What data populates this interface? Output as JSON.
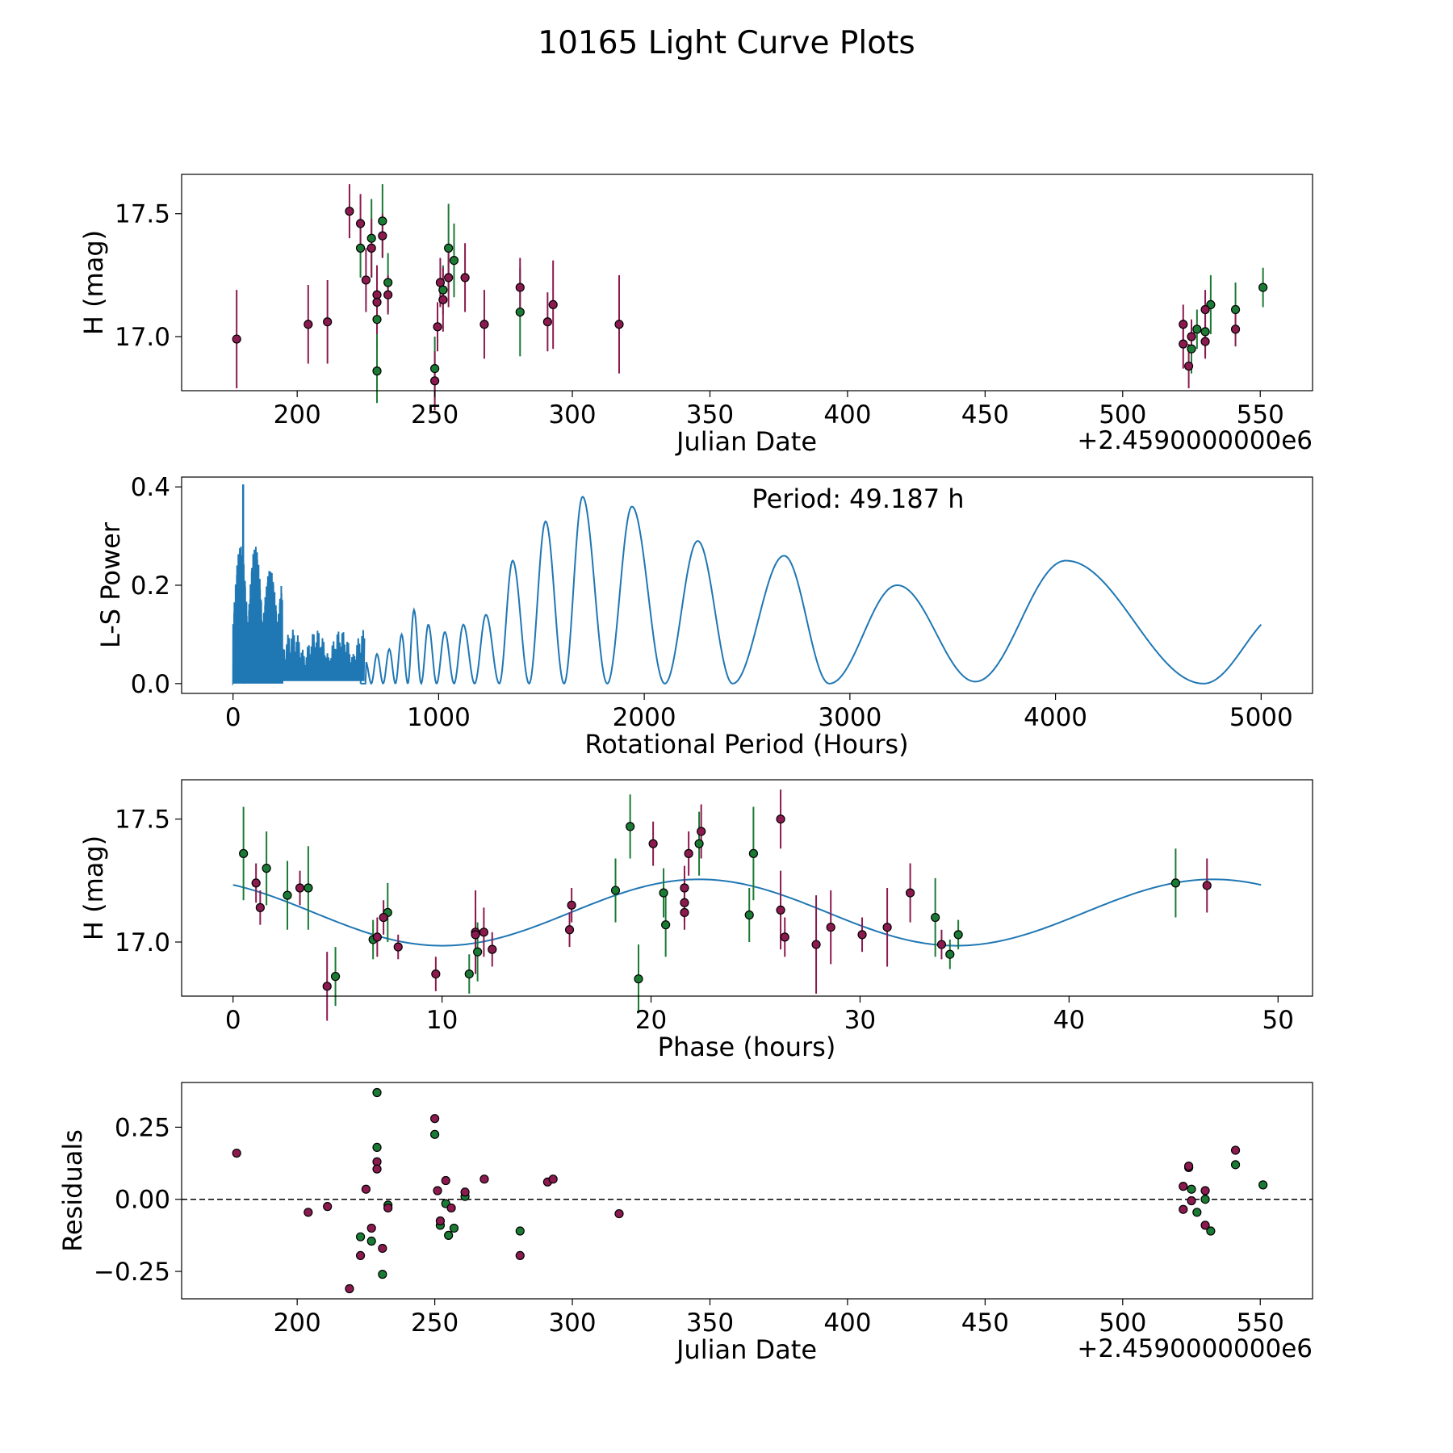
{
  "figure_title": "10165 Light Curve Plots",
  "colors": {
    "green_points": "#1b7a34",
    "purple_points": "#8b1a4f",
    "curve": "#1f77b4",
    "axes": "#000000"
  },
  "chart_data": [
    {
      "id": "lc",
      "type": "scatter",
      "xlabel": "Julian Date",
      "ylabel": "H (mag)",
      "x_offset_label": "+2.4590000000e6",
      "xlim": [
        158,
        569
      ],
      "ylim": [
        16.78,
        17.66
      ],
      "xticks": [
        200,
        250,
        300,
        350,
        400,
        450,
        500,
        550
      ],
      "xtick_labels": [
        "200",
        "250",
        "300",
        "350",
        "400",
        "450",
        "500",
        "550"
      ],
      "yticks": [
        17.0,
        17.5
      ],
      "ytick_labels": [
        "17.0",
        "17.5"
      ],
      "series": [
        {
          "name": "green",
          "color": "#1b7a34",
          "points": [
            {
              "x": 223.0,
              "y": 17.36,
              "err": 0.12
            },
            {
              "x": 227.0,
              "y": 17.4,
              "err": 0.16
            },
            {
              "x": 229.0,
              "y": 17.07,
              "err": 0.12
            },
            {
              "x": 229.0,
              "y": 16.86,
              "err": 0.13
            },
            {
              "x": 231.0,
              "y": 17.47,
              "err": 0.15
            },
            {
              "x": 233.0,
              "y": 17.22,
              "err": 0.12
            },
            {
              "x": 250.0,
              "y": 16.87,
              "err": 0.13
            },
            {
              "x": 253.0,
              "y": 17.19,
              "err": 0.1
            },
            {
              "x": 255.0,
              "y": 17.36,
              "err": 0.18
            },
            {
              "x": 257.0,
              "y": 17.31,
              "err": 0.15
            },
            {
              "x": 281.0,
              "y": 17.1,
              "err": 0.18
            },
            {
              "x": 525.0,
              "y": 16.95,
              "err": 0.1
            },
            {
              "x": 527.0,
              "y": 17.03,
              "err": 0.08
            },
            {
              "x": 530.0,
              "y": 17.02,
              "err": 0.1
            },
            {
              "x": 532.0,
              "y": 17.13,
              "err": 0.12
            },
            {
              "x": 541.0,
              "y": 17.11,
              "err": 0.11
            },
            {
              "x": 551.0,
              "y": 17.2,
              "err": 0.08
            }
          ]
        },
        {
          "name": "purple",
          "color": "#8b1a4f",
          "points": [
            {
              "x": 178.0,
              "y": 16.99,
              "err": 0.2
            },
            {
              "x": 204.0,
              "y": 17.05,
              "err": 0.16
            },
            {
              "x": 211.0,
              "y": 17.06,
              "err": 0.17
            },
            {
              "x": 219.0,
              "y": 17.51,
              "err": 0.11
            },
            {
              "x": 223.0,
              "y": 17.46,
              "err": 0.12
            },
            {
              "x": 225.0,
              "y": 17.23,
              "err": 0.13
            },
            {
              "x": 227.0,
              "y": 17.36,
              "err": 0.12
            },
            {
              "x": 229.0,
              "y": 17.17,
              "err": 0.12
            },
            {
              "x": 229.0,
              "y": 17.14,
              "err": 0.13
            },
            {
              "x": 231.0,
              "y": 17.41,
              "err": 0.09
            },
            {
              "x": 233.0,
              "y": 17.17,
              "err": 0.08
            },
            {
              "x": 250.0,
              "y": 16.82,
              "err": 0.12
            },
            {
              "x": 251.0,
              "y": 17.04,
              "err": 0.1
            },
            {
              "x": 252.0,
              "y": 17.22,
              "err": 0.1
            },
            {
              "x": 253.0,
              "y": 17.15,
              "err": 0.13
            },
            {
              "x": 255.0,
              "y": 17.24,
              "err": 0.12
            },
            {
              "x": 261.0,
              "y": 17.24,
              "err": 0.14
            },
            {
              "x": 268.0,
              "y": 17.05,
              "err": 0.14
            },
            {
              "x": 281.0,
              "y": 17.2,
              "err": 0.12
            },
            {
              "x": 291.0,
              "y": 17.06,
              "err": 0.12
            },
            {
              "x": 293.0,
              "y": 17.13,
              "err": 0.18
            },
            {
              "x": 317.0,
              "y": 17.05,
              "err": 0.2
            },
            {
              "x": 522.0,
              "y": 17.05,
              "err": 0.08
            },
            {
              "x": 522.0,
              "y": 16.97,
              "err": 0.1
            },
            {
              "x": 524.0,
              "y": 16.88,
              "err": 0.09
            },
            {
              "x": 525.0,
              "y": 17.0,
              "err": 0.07
            },
            {
              "x": 530.0,
              "y": 17.11,
              "err": 0.08
            },
            {
              "x": 530.0,
              "y": 16.98,
              "err": 0.07
            },
            {
              "x": 541.0,
              "y": 17.03,
              "err": 0.07
            }
          ]
        }
      ]
    },
    {
      "id": "ls",
      "type": "line",
      "xlabel": "Rotational Period (Hours)",
      "ylabel": "L-S Power",
      "annotation": "Period: 49.187 h",
      "xlim": [
        -250,
        5250
      ],
      "ylim": [
        -0.02,
        0.42
      ],
      "xticks": [
        0,
        1000,
        2000,
        3000,
        4000,
        5000
      ],
      "xtick_labels": [
        "0",
        "1000",
        "2000",
        "3000",
        "4000",
        "5000"
      ],
      "yticks": [
        0.0,
        0.2,
        0.4
      ],
      "ytick_labels": [
        "0.0",
        "0.2",
        "0.4"
      ],
      "peaks": [
        {
          "x": 645,
          "y": 0.045
        },
        {
          "x": 700,
          "y": 0.06
        },
        {
          "x": 760,
          "y": 0.07
        },
        {
          "x": 820,
          "y": 0.1
        },
        {
          "x": 880,
          "y": 0.15
        },
        {
          "x": 950,
          "y": 0.12
        },
        {
          "x": 1030,
          "y": 0.105
        },
        {
          "x": 1120,
          "y": 0.12
        },
        {
          "x": 1230,
          "y": 0.14
        },
        {
          "x": 1360,
          "y": 0.25
        },
        {
          "x": 1520,
          "y": 0.33
        },
        {
          "x": 1700,
          "y": 0.38
        },
        {
          "x": 1940,
          "y": 0.36
        },
        {
          "x": 2260,
          "y": 0.29
        },
        {
          "x": 2680,
          "y": 0.26
        },
        {
          "x": 3230,
          "y": 0.2
        },
        {
          "x": 4050,
          "y": 0.25
        }
      ],
      "troughs": [
        {
          "x": 2090,
          "y": 0.0
        },
        {
          "x": 2430,
          "y": 0.0
        },
        {
          "x": 2900,
          "y": 0.0
        },
        {
          "x": 3610,
          "y": 0.004
        },
        {
          "x": 4720,
          "y": 0.0
        }
      ],
      "end_point": {
        "x": 5000,
        "y": 0.12
      },
      "dense_region": {
        "x_start": 0,
        "x_end": 240,
        "max_power": 0.405,
        "peak_x": 49.187
      },
      "ripple_region": {
        "x_start": 240,
        "x_end": 640,
        "max_power": 0.11
      }
    },
    {
      "id": "phase",
      "type": "scatter",
      "xlabel": "Phase (hours)",
      "ylabel": "H (mag)",
      "xlim": [
        -2.46,
        51.65
      ],
      "ylim": [
        16.78,
        17.66
      ],
      "xticks": [
        0,
        10,
        20,
        30,
        40,
        50
      ],
      "xtick_labels": [
        "0",
        "10",
        "20",
        "30",
        "40",
        "50"
      ],
      "yticks": [
        17.0,
        17.5
      ],
      "ytick_labels": [
        "17.0",
        "17.5"
      ],
      "model": {
        "period_hours": 24.59,
        "mean": 17.12,
        "amplitude": 0.135,
        "phase_peak_hours": 22.3,
        "x_max": 49.187
      },
      "series": [
        {
          "name": "green",
          "color": "#1b7a34",
          "points": [
            {
              "x": 0.5,
              "y": 17.36,
              "err": 0.19
            },
            {
              "x": 1.6,
              "y": 17.3,
              "err": 0.15
            },
            {
              "x": 2.6,
              "y": 17.19,
              "err": 0.14
            },
            {
              "x": 3.6,
              "y": 17.22,
              "err": 0.17
            },
            {
              "x": 4.9,
              "y": 16.86,
              "err": 0.12
            },
            {
              "x": 6.7,
              "y": 17.01,
              "err": 0.08
            },
            {
              "x": 7.4,
              "y": 17.12,
              "err": 0.12
            },
            {
              "x": 11.3,
              "y": 16.87,
              "err": 0.08
            },
            {
              "x": 11.7,
              "y": 16.96,
              "err": 0.12
            },
            {
              "x": 18.3,
              "y": 17.21,
              "err": 0.13
            },
            {
              "x": 19.0,
              "y": 17.47,
              "err": 0.13
            },
            {
              "x": 19.4,
              "y": 16.85,
              "err": 0.14
            },
            {
              "x": 20.6,
              "y": 17.2,
              "err": 0.1
            },
            {
              "x": 20.7,
              "y": 17.07,
              "err": 0.13
            },
            {
              "x": 22.3,
              "y": 17.4,
              "err": 0.13
            },
            {
              "x": 24.7,
              "y": 17.11,
              "err": 0.11
            },
            {
              "x": 24.9,
              "y": 17.36,
              "err": 0.19
            },
            {
              "x": 33.6,
              "y": 17.1,
              "err": 0.16
            },
            {
              "x": 34.3,
              "y": 16.95,
              "err": 0.06
            },
            {
              "x": 34.7,
              "y": 17.03,
              "err": 0.06
            },
            {
              "x": 45.1,
              "y": 17.24,
              "err": 0.14
            }
          ]
        },
        {
          "name": "purple",
          "color": "#8b1a4f",
          "points": [
            {
              "x": 1.1,
              "y": 17.24,
              "err": 0.08
            },
            {
              "x": 1.3,
              "y": 17.14,
              "err": 0.07
            },
            {
              "x": 3.2,
              "y": 17.22,
              "err": 0.07
            },
            {
              "x": 4.5,
              "y": 16.82,
              "err": 0.14
            },
            {
              "x": 6.9,
              "y": 17.02,
              "err": 0.08
            },
            {
              "x": 7.2,
              "y": 17.1,
              "err": 0.07
            },
            {
              "x": 7.9,
              "y": 16.98,
              "err": 0.05
            },
            {
              "x": 9.7,
              "y": 16.87,
              "err": 0.07
            },
            {
              "x": 11.6,
              "y": 17.04,
              "err": 0.17
            },
            {
              "x": 11.6,
              "y": 17.03,
              "err": 0.1
            },
            {
              "x": 12.0,
              "y": 17.04,
              "err": 0.1
            },
            {
              "x": 12.4,
              "y": 16.97,
              "err": 0.07
            },
            {
              "x": 16.1,
              "y": 17.05,
              "err": 0.07
            },
            {
              "x": 16.2,
              "y": 17.15,
              "err": 0.07
            },
            {
              "x": 20.1,
              "y": 17.4,
              "err": 0.09
            },
            {
              "x": 21.6,
              "y": 17.22,
              "err": 0.09
            },
            {
              "x": 21.6,
              "y": 17.16,
              "err": 0.08
            },
            {
              "x": 21.6,
              "y": 17.12,
              "err": 0.07
            },
            {
              "x": 21.8,
              "y": 17.36,
              "err": 0.09
            },
            {
              "x": 22.4,
              "y": 17.45,
              "err": 0.11
            },
            {
              "x": 26.2,
              "y": 17.5,
              "err": 0.12
            },
            {
              "x": 26.2,
              "y": 17.13,
              "err": 0.16
            },
            {
              "x": 26.4,
              "y": 17.02,
              "err": 0.08
            },
            {
              "x": 27.9,
              "y": 16.99,
              "err": 0.2
            },
            {
              "x": 28.6,
              "y": 17.06,
              "err": 0.15
            },
            {
              "x": 30.1,
              "y": 17.03,
              "err": 0.07
            },
            {
              "x": 31.3,
              "y": 17.06,
              "err": 0.16
            },
            {
              "x": 32.4,
              "y": 17.2,
              "err": 0.12
            },
            {
              "x": 33.9,
              "y": 16.99,
              "err": 0.06
            },
            {
              "x": 46.6,
              "y": 17.23,
              "err": 0.11
            }
          ]
        }
      ]
    },
    {
      "id": "resid",
      "type": "scatter",
      "xlabel": "Julian Date",
      "ylabel": "Residuals",
      "x_offset_label": "+2.4590000000e6",
      "xlim": [
        158,
        569
      ],
      "ylim": [
        -0.345,
        0.405
      ],
      "xticks": [
        200,
        250,
        300,
        350,
        400,
        450,
        500,
        550
      ],
      "xtick_labels": [
        "200",
        "250",
        "300",
        "350",
        "400",
        "450",
        "500",
        "550"
      ],
      "yticks": [
        -0.25,
        0.0,
        0.25
      ],
      "ytick_labels": [
        "−0.25",
        "0.00",
        "0.25"
      ],
      "hline": 0.0,
      "series": [
        {
          "name": "green",
          "color": "#1b7a34",
          "points": [
            {
              "x": 223.0,
              "y": -0.13
            },
            {
              "x": 227.0,
              "y": -0.145
            },
            {
              "x": 229.0,
              "y": 0.37
            },
            {
              "x": 229.0,
              "y": 0.18
            },
            {
              "x": 231.0,
              "y": -0.26
            },
            {
              "x": 233.0,
              "y": -0.02
            },
            {
              "x": 250.0,
              "y": 0.225
            },
            {
              "x": 252.0,
              "y": -0.09
            },
            {
              "x": 254.0,
              "y": -0.015
            },
            {
              "x": 255.0,
              "y": -0.125
            },
            {
              "x": 257.0,
              "y": -0.1
            },
            {
              "x": 261.0,
              "y": 0.01
            },
            {
              "x": 281.0,
              "y": -0.11
            },
            {
              "x": 525.0,
              "y": 0.035
            },
            {
              "x": 527.0,
              "y": -0.045
            },
            {
              "x": 530.0,
              "y": 0.0
            },
            {
              "x": 532.0,
              "y": -0.11
            },
            {
              "x": 541.0,
              "y": 0.12
            },
            {
              "x": 551.0,
              "y": 0.05
            }
          ]
        },
        {
          "name": "purple",
          "color": "#8b1a4f",
          "points": [
            {
              "x": 178.0,
              "y": 0.16
            },
            {
              "x": 204.0,
              "y": -0.045
            },
            {
              "x": 211.0,
              "y": -0.025
            },
            {
              "x": 219.0,
              "y": -0.31
            },
            {
              "x": 223.0,
              "y": -0.195
            },
            {
              "x": 225.0,
              "y": 0.035
            },
            {
              "x": 227.0,
              "y": -0.1
            },
            {
              "x": 229.0,
              "y": 0.13
            },
            {
              "x": 229.0,
              "y": 0.105
            },
            {
              "x": 231.0,
              "y": -0.17
            },
            {
              "x": 233.0,
              "y": -0.03
            },
            {
              "x": 250.0,
              "y": 0.28
            },
            {
              "x": 251.0,
              "y": 0.03
            },
            {
              "x": 252.0,
              "y": -0.075
            },
            {
              "x": 254.0,
              "y": 0.065
            },
            {
              "x": 256.0,
              "y": -0.03
            },
            {
              "x": 261.0,
              "y": 0.025
            },
            {
              "x": 268.0,
              "y": 0.07
            },
            {
              "x": 281.0,
              "y": -0.195
            },
            {
              "x": 291.0,
              "y": 0.06
            },
            {
              "x": 293.0,
              "y": 0.07
            },
            {
              "x": 317.0,
              "y": -0.05
            },
            {
              "x": 522.0,
              "y": 0.045
            },
            {
              "x": 522.0,
              "y": -0.035
            },
            {
              "x": 524.0,
              "y": 0.11
            },
            {
              "x": 524.0,
              "y": 0.115
            },
            {
              "x": 525.0,
              "y": -0.005
            },
            {
              "x": 530.0,
              "y": 0.03
            },
            {
              "x": 530.0,
              "y": -0.09
            },
            {
              "x": 541.0,
              "y": 0.17
            }
          ]
        }
      ]
    }
  ]
}
